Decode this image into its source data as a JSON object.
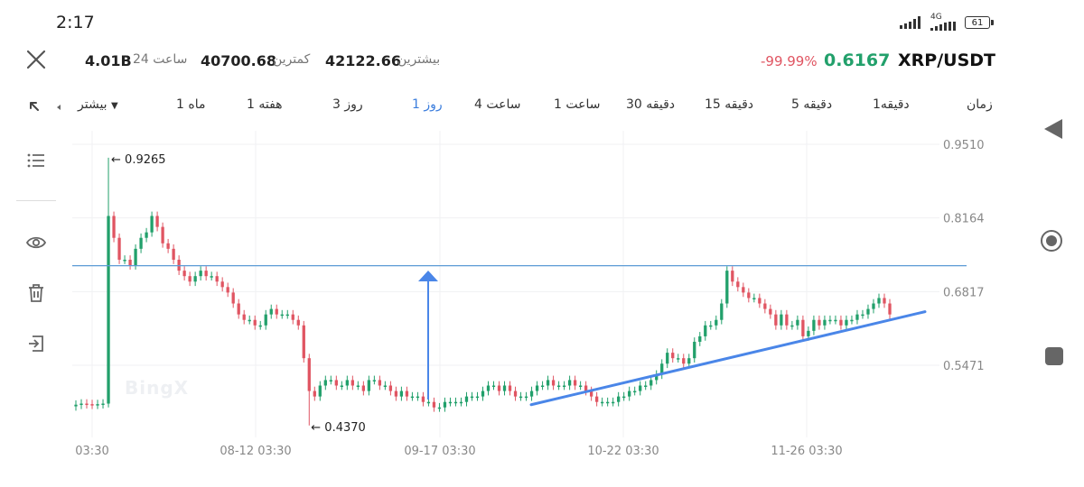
{
  "status": {
    "time": "2:17",
    "network": "4G",
    "battery": "61"
  },
  "header": {
    "pair": "XRP/USDT",
    "price": "0.6167",
    "change": "-99.99%",
    "high_label": "بیشترین",
    "high_value": "42122.66",
    "low_label": "کمترین",
    "low_value": "40700.68",
    "volume_label": "24 ساعت",
    "volume_value": "4.01B"
  },
  "intervals": {
    "label": "زمان",
    "items": [
      "1دقیقه",
      "5 دقیقه",
      "15 دقیقه",
      "30 دقیقه",
      "1 ساعت",
      "4 ساعت",
      "1 روز",
      "3 روز",
      "1 هفته",
      "1 ماه"
    ],
    "active": "1 روز",
    "more": "بیشتر"
  },
  "watermark": "BingX",
  "icons": {
    "close": "close-icon",
    "expand": "expand-icon",
    "list": "list-icon",
    "eye": "eye-icon",
    "trash": "trash-icon",
    "exit": "exit-icon"
  },
  "colors": {
    "up": "#22a06b",
    "down": "#e05562",
    "accent": "#3b7ddd",
    "trendline": "#4a86e8",
    "hline": "#5b9bd5"
  },
  "chart_data": {
    "type": "candlestick",
    "y_ticks": [
      "0.9510",
      "0.8164",
      "0.6817",
      "0.5471"
    ],
    "x_ticks": [
      "03:30",
      "08-12 03:30",
      "09-17 03:30",
      "10-22 03:30",
      "11-26 03:30"
    ],
    "ylim": [
      0.4,
      0.96
    ],
    "high_marker": "0.9265",
    "low_marker": "0.4370",
    "horizontal_line": 0.729,
    "closes": [
      0.475,
      0.477,
      0.476,
      0.475,
      0.476,
      0.477,
      0.82,
      0.78,
      0.74,
      0.74,
      0.73,
      0.76,
      0.78,
      0.79,
      0.82,
      0.8,
      0.77,
      0.76,
      0.74,
      0.72,
      0.71,
      0.7,
      0.71,
      0.72,
      0.71,
      0.71,
      0.7,
      0.69,
      0.68,
      0.66,
      0.64,
      0.63,
      0.63,
      0.62,
      0.62,
      0.64,
      0.65,
      0.64,
      0.64,
      0.64,
      0.63,
      0.62,
      0.56,
      0.5,
      0.49,
      0.51,
      0.52,
      0.52,
      0.51,
      0.51,
      0.52,
      0.51,
      0.51,
      0.5,
      0.52,
      0.52,
      0.51,
      0.51,
      0.5,
      0.49,
      0.5,
      0.49,
      0.49,
      0.49,
      0.48,
      0.48,
      0.47,
      0.47,
      0.48,
      0.48,
      0.48,
      0.48,
      0.49,
      0.49,
      0.49,
      0.5,
      0.51,
      0.51,
      0.5,
      0.51,
      0.5,
      0.49,
      0.49,
      0.49,
      0.5,
      0.51,
      0.51,
      0.52,
      0.51,
      0.51,
      0.51,
      0.52,
      0.51,
      0.51,
      0.5,
      0.49,
      0.48,
      0.48,
      0.48,
      0.48,
      0.49,
      0.49,
      0.5,
      0.5,
      0.51,
      0.51,
      0.52,
      0.53,
      0.55,
      0.57,
      0.56,
      0.56,
      0.55,
      0.56,
      0.59,
      0.6,
      0.62,
      0.62,
      0.63,
      0.66,
      0.72,
      0.7,
      0.69,
      0.68,
      0.67,
      0.67,
      0.66,
      0.65,
      0.64,
      0.62,
      0.64,
      0.62,
      0.62,
      0.63,
      0.6,
      0.61,
      0.63,
      0.62,
      0.63,
      0.63,
      0.63,
      0.62,
      0.63,
      0.63,
      0.64,
      0.64,
      0.65,
      0.66,
      0.67,
      0.66,
      0.64
    ],
    "trendline": [
      [
        0.47,
        0.475
      ],
      [
        0.63,
        0.645
      ]
    ]
  }
}
